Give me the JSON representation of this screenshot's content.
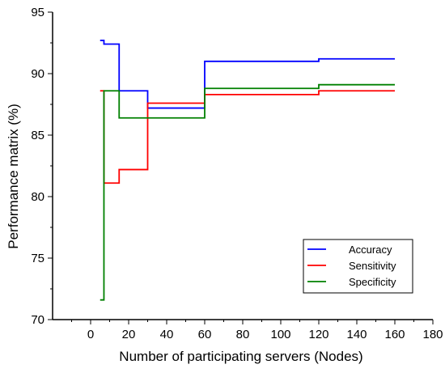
{
  "chart_data": {
    "type": "line",
    "step": true,
    "title": "",
    "xlabel": "Number of participating servers (Nodes)",
    "ylabel": "Performance matrix (%)",
    "xlim": [
      -20,
      180
    ],
    "ylim": [
      70,
      95
    ],
    "xticks": [
      0,
      20,
      40,
      60,
      80,
      100,
      120,
      140,
      160,
      180
    ],
    "yticks": [
      70,
      75,
      80,
      85,
      90,
      95
    ],
    "grid": false,
    "legend_position": "bottom-right",
    "series": [
      {
        "name": "Accuracy",
        "color": "#0000ff",
        "x": [
          5,
          7,
          15,
          30,
          60,
          120,
          160
        ],
        "y": [
          92.7,
          92.4,
          88.6,
          87.2,
          91.0,
          91.2,
          91.2
        ]
      },
      {
        "name": "Sensitivity",
        "color": "#ff0000",
        "x": [
          5,
          7,
          15,
          30,
          60,
          120,
          160
        ],
        "y": [
          88.6,
          81.1,
          82.2,
          87.6,
          88.3,
          88.6,
          88.6
        ]
      },
      {
        "name": "Specificity",
        "color": "#008000",
        "x": [
          5,
          7,
          15,
          30,
          60,
          120,
          160
        ],
        "y": [
          71.6,
          88.6,
          86.4,
          86.4,
          88.8,
          89.1,
          89.1
        ]
      }
    ]
  }
}
